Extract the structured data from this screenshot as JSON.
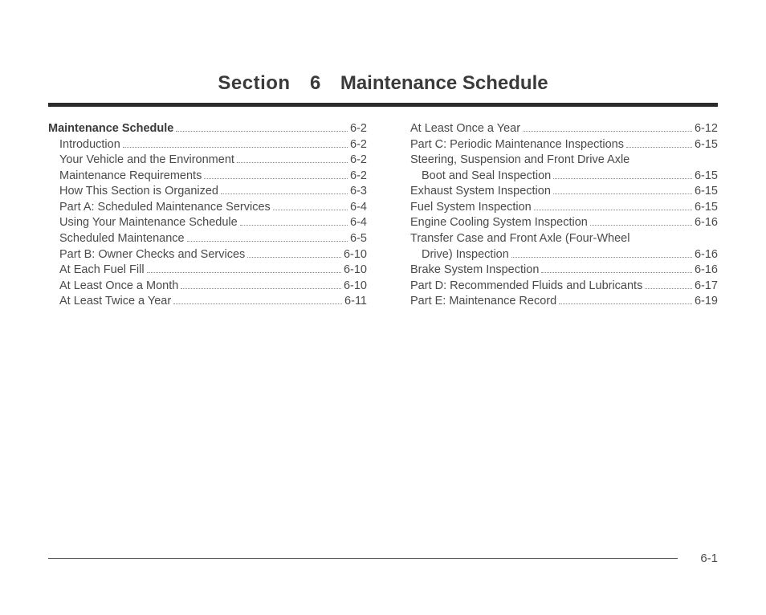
{
  "title": {
    "section_word": "Section",
    "section_num": "6",
    "section_name": "Maintenance Schedule"
  },
  "page_number": "6-1",
  "toc": {
    "left": [
      {
        "label": "Maintenance Schedule",
        "page": "6-2",
        "bold": true,
        "indent": 0
      },
      {
        "label": "Introduction",
        "page": "6-2",
        "indent": 1
      },
      {
        "label": "Your Vehicle and the Environment",
        "page": "6-2",
        "indent": 1
      },
      {
        "label": "Maintenance Requirements",
        "page": "6-2",
        "indent": 1
      },
      {
        "label": "How This Section is Organized",
        "page": "6-3",
        "indent": 1
      },
      {
        "label": "Part A: Scheduled Maintenance Services",
        "page": "6-4",
        "indent": 1
      },
      {
        "label": "Using Your Maintenance Schedule",
        "page": "6-4",
        "indent": 1
      },
      {
        "label": "Scheduled Maintenance",
        "page": "6-5",
        "indent": 1
      },
      {
        "label": "Part B: Owner Checks and Services",
        "page": "6-10",
        "indent": 1
      },
      {
        "label": "At Each Fuel Fill",
        "page": "6-10",
        "indent": 1
      },
      {
        "label": "At Least Once a Month",
        "page": "6-10",
        "indent": 1
      },
      {
        "label": "At Least Twice a Year",
        "page": "6-11",
        "indent": 1
      }
    ],
    "right": [
      {
        "label": "At Least Once a Year",
        "page": "6-12",
        "indent": 1
      },
      {
        "label": "Part C: Periodic Maintenance Inspections",
        "page": "6-15",
        "indent": 1
      },
      {
        "wrap_pre": "Steering, Suspension and Front Drive Axle",
        "label": "Boot and Seal Inspection",
        "page": "6-15",
        "indent": 1,
        "wrap_indent": 2
      },
      {
        "label": "Exhaust System Inspection",
        "page": "6-15",
        "indent": 1
      },
      {
        "label": "Fuel System Inspection",
        "page": "6-15",
        "indent": 1
      },
      {
        "label": "Engine Cooling System Inspection",
        "page": "6-16",
        "indent": 1
      },
      {
        "wrap_pre": "Transfer Case and Front Axle (Four-Wheel",
        "label": "Drive) Inspection",
        "page": "6-16",
        "indent": 1,
        "wrap_indent": 2
      },
      {
        "label": "Brake System Inspection",
        "page": "6-16",
        "indent": 1
      },
      {
        "label": "Part D: Recommended Fluids and Lubricants",
        "page": "6-17",
        "indent": 1
      },
      {
        "label": "Part E: Maintenance Record",
        "page": "6-19",
        "indent": 1
      }
    ]
  }
}
